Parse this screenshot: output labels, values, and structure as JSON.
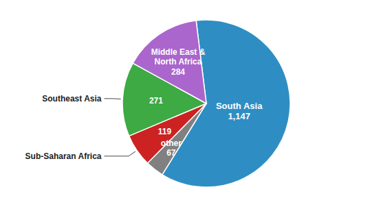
{
  "chart_data": {
    "type": "pie",
    "categories": [
      "South Asia",
      "other",
      "Sub-Saharan Africa",
      "Southeast Asia",
      "Middle East & North Africa"
    ],
    "values": [
      1147,
      67,
      119,
      271,
      284
    ],
    "value_labels": [
      "1,147",
      "67",
      "119",
      "271",
      "284"
    ],
    "colors": [
      "#2E8EC3",
      "#808080",
      "#CC2222",
      "#3DAA44",
      "#AA66CC"
    ],
    "data_labels": true
  }
}
